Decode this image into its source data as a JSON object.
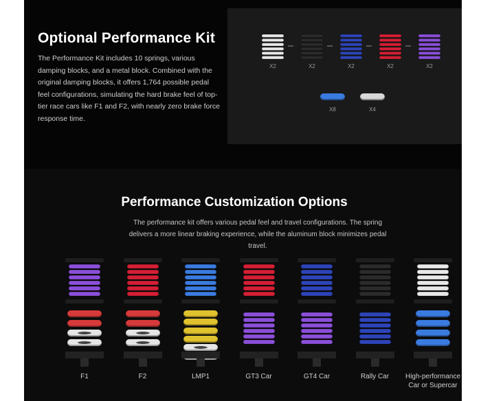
{
  "kit": {
    "title": "Optional Performance Kit",
    "description": "The Performance Kit includes 10 springs, various damping blocks, and a metal block. Combined with the original damping blocks, it offers 1,764 possible pedal feel configurations, simulating the hard brake feel of top-tier race cars like F1 and F2, with nearly zero brake force response time.",
    "springs": [
      {
        "color": "#e8e8e8",
        "qty": "X2"
      },
      {
        "color": "#2b2b2b",
        "qty": "X2"
      },
      {
        "color": "#2d44b8",
        "qty": "X2"
      },
      {
        "color": "#d41f35",
        "qty": "X2"
      },
      {
        "color": "#8a4fd9",
        "qty": "X2"
      }
    ],
    "blocks": [
      {
        "color": "#3a7be0",
        "qty": "X8"
      },
      {
        "color": "#d8d8d8",
        "qty": "X4"
      }
    ]
  },
  "options": {
    "title": "Performance Customization Options",
    "description": "The performance kit offers various pedal feel and travel configurations. The spring delivers a more linear braking experience, while the aluminum block minimizes pedal travel.",
    "columns": [
      {
        "label": "F1",
        "top": "#8a4fd9",
        "bottom": [
          "#d73a3a",
          "#d73a3a",
          "#dcdcdc",
          "#dcdcdc"
        ]
      },
      {
        "label": "F2",
        "top": "#d41f35",
        "bottom": [
          "#d73a3a",
          "#d73a3a",
          "#dcdcdc",
          "#dcdcdc"
        ]
      },
      {
        "label": "LMP1",
        "top": "#3a7be0",
        "bottom": [
          "#e0c22e",
          "#e0c22e",
          "#e0c22e",
          "#e0c22e",
          "#dcdcdc",
          "#dcdcdc"
        ]
      },
      {
        "label": "GT3 Car",
        "top": "#d41f35",
        "bottom": [
          "#8a4fd9"
        ]
      },
      {
        "label": "GT4 Car",
        "top": "#2d44b8",
        "bottom": [
          "#8a4fd9"
        ]
      },
      {
        "label": "Rally Car",
        "top": "#2b2b2b",
        "bottom": [
          "#2d44b8"
        ]
      },
      {
        "label": "High-performance Car or Supercar",
        "top": "#e8e8e8",
        "bottom": [
          "#3a7be0",
          "#3a7be0",
          "#3a7be0",
          "#3a7be0"
        ]
      }
    ]
  }
}
